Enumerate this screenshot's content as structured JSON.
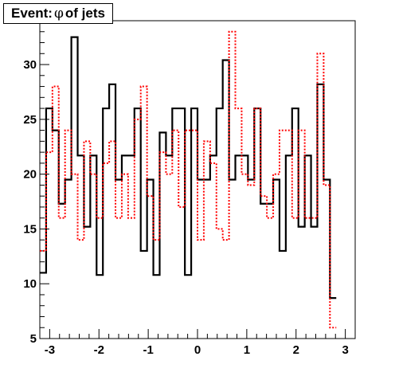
{
  "chart_data": {
    "type": "line",
    "title_prefix": "Event: ",
    "title_symbol": "φ",
    "title_suffix": " of jets",
    "xlim": [
      -3.2,
      3.2
    ],
    "ylim": [
      5,
      34
    ],
    "xticks": [
      -3,
      -2,
      -1,
      0,
      1,
      2,
      3
    ],
    "xtick_labels": [
      "-3",
      "-2",
      "-1",
      "0",
      "1",
      "2",
      "3"
    ],
    "yticks": [
      5,
      10,
      15,
      20,
      25,
      30
    ],
    "ytick_labels": [
      "5",
      "10",
      "15",
      "20",
      "25",
      "30"
    ],
    "bin_edges_start": -3.2,
    "bin_width": 0.128,
    "grid": false,
    "series": [
      {
        "style": "solid",
        "color": "#000000",
        "values": [
          11,
          26,
          24,
          17.3,
          19.5,
          32.5,
          21.7,
          15.2,
          21.7,
          10.8,
          26,
          28.2,
          19.5,
          21.7,
          21.7,
          26,
          13,
          19.5,
          10.8,
          23.8,
          21.7,
          26,
          26,
          10.8,
          26,
          19.5,
          19.5,
          21.7,
          26,
          30.4,
          19.5,
          21.7,
          21.7,
          19.5,
          26,
          17.3,
          17.3,
          19.5,
          13,
          21.7,
          26,
          15.2,
          21.7,
          15.2,
          28.2,
          19.5,
          8.7
        ]
      },
      {
        "style": "dotted",
        "color": "#ff0000",
        "values": [
          13,
          22,
          28,
          16,
          24,
          20,
          14,
          23,
          20,
          16,
          21,
          23,
          16,
          20,
          16,
          25,
          28,
          18,
          14,
          22,
          20,
          24,
          17,
          24,
          24,
          14,
          23,
          21,
          15,
          14,
          33,
          26,
          20,
          19,
          26,
          18,
          16,
          20,
          24,
          24,
          16,
          24,
          16,
          16,
          31,
          19,
          6
        ]
      }
    ]
  }
}
